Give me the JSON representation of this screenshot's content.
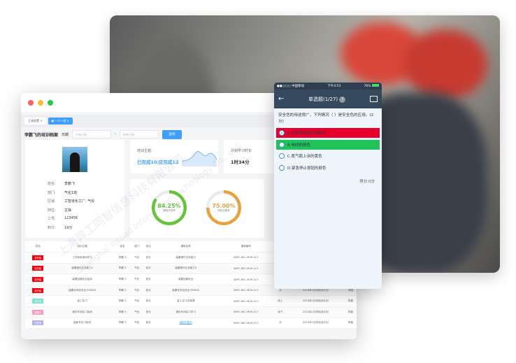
{
  "colors": {
    "accent": "#409eff",
    "green": "#67c23a",
    "orange": "#e6a23c",
    "red": "#e8002d",
    "correct": "#1fc35a"
  },
  "browser": {
    "tabs": [
      {
        "label": "工具配置"
      },
      {
        "label": "一人一档",
        "active": true
      }
    ],
    "header": {
      "title": "李鹏飞的培训档案",
      "date_label": "日期",
      "start_placeholder": "开始日期",
      "separator": "-",
      "end_placeholder": "结束日期",
      "search_button": "查询"
    },
    "profile": {
      "fields": [
        {
          "label": "姓名:",
          "value": "李鹏飞"
        },
        {
          "label": "部门:",
          "value": "气化1班"
        },
        {
          "label": "区域:",
          "value": "工智道化工厂: 气化"
        },
        {
          "label": "岗位:",
          "value": "主操"
        },
        {
          "label": "工号:",
          "value": "123456"
        },
        {
          "label": "积分:",
          "value": "19分"
        }
      ]
    },
    "training": {
      "label": "培训主题:",
      "value": "已完成10/应完成12"
    },
    "plan": {
      "label": "计划学习时长",
      "value": "1时34分"
    },
    "rings": [
      {
        "value": "84.25%",
        "label": "课程完成率",
        "percent": 84.25
      },
      {
        "value": "75.00%",
        "label": "测验合格率",
        "percent": 75
      }
    ],
    "table": {
      "headers": [
        "状态",
        "培训主题",
        "姓名",
        "部门",
        "岗位",
        "课程名称",
        "课程编号",
        "",
        "",
        ""
      ],
      "rows": [
        {
          "status": "未开始",
          "status_color": "#f5000f",
          "cells": [
            "工作验收使用学习",
            "李鹏飞",
            "气化",
            "班长",
            "装置操作业务能力",
            "SBPC-REC-M0H-017",
            "",
            "",
            ""
          ]
        },
        {
          "status": "未开始",
          "status_color": "#f5000f",
          "cells": [
            "装置操作业务能力2",
            "李鹏飞",
            "气化",
            "班长",
            "装置操作业务能力2",
            "SBPC-REC-M0H-017",
            "",
            "",
            ""
          ]
        },
        {
          "status": "未开始",
          "status_color": "#f5000f",
          "cells": [
            "装置运输安全培训",
            "李鹏飞",
            "气化",
            "班长",
            "装置运输安全",
            "SBPC-REC-M0H-017",
            "",
            "",
            ""
          ]
        },
        {
          "status": "未开始",
          "status_color": "#f5000f",
          "cells": [
            "装置化学品安全卡MSDS",
            "李鹏飞",
            "气化",
            "班长",
            "装置化学品安全卡MSDS",
            "SBPC-REC-M0H-017",
            "无",
            "2020年1月份培训计划",
            "常规"
          ]
        },
        {
          "status": "进行中",
          "status_color": "#7fdfcf",
          "cells": [
            "金工实习",
            "李鹏飞",
            "气化",
            "班长",
            "金工实习实操课",
            "SBPC-REC-M0H-017",
            "线上",
            "2020年1月份培训计划",
            "职能"
          ]
        },
        {
          "status": "延期中",
          "status_color": "#f79ac0",
          "cells": [
            "煤化车间实习培训",
            "李鹏飞",
            "气化",
            "班长",
            "煤化车间实习学习",
            "SBPC-REC-M0H-017",
            "线下",
            "2020年1月份培训计划",
            "职能"
          ]
        },
        {
          "status": "已完成",
          "status_color": "#b7b3f0",
          "cells": [
            "装卸车实习培训",
            "李鹏飞",
            "气化",
            "班长",
            "装卸车复训",
            "SBPC-REC-M0H-017",
            "无",
            "2020年1月份培训计划",
            "职能"
          ]
        }
      ]
    }
  },
  "phone": {
    "status_bar": {
      "carrier": "●●○○○ 中国移动",
      "time": "下午4:53",
      "battery": "76%"
    },
    "nav": {
      "title": "单选题(1/27)",
      "help": "?"
    },
    "question": "安全色的用途很广，下列情况（ ）是安全色的应用。(2分)",
    "options": [
      {
        "label": "A.管道等设施不同颜色",
        "state": "wrong-selected"
      },
      {
        "label": "B.电线的颜色",
        "state": "correct"
      },
      {
        "label": "C.氮气瓶上涂的黄色",
        "state": "none"
      },
      {
        "label": "D.紧急停止按钮的颜色",
        "state": "none"
      }
    ],
    "score": "得分:0分"
  },
  "watermark": {
    "cn": "上海异工同智信息科技有限公司",
    "en": "Shanghai Inroad Information Technology Co., Ltd."
  }
}
